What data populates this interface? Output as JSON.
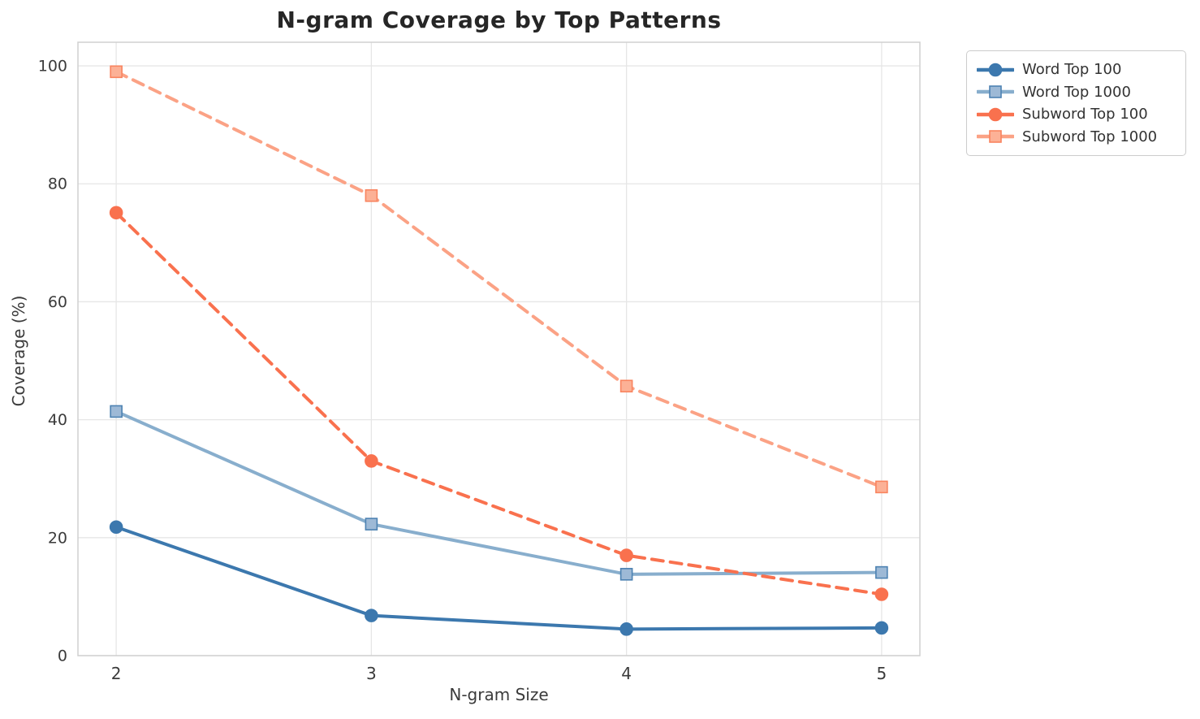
{
  "title": "N-gram Coverage by Top Patterns",
  "chart_data": {
    "type": "line",
    "title": "N-gram Coverage by Top Patterns",
    "xlabel": "N-gram Size",
    "ylabel": "Coverage (%)",
    "x": [
      2,
      3,
      4,
      5
    ],
    "xticks": [
      "2",
      "3",
      "4",
      "5"
    ],
    "yticks": [
      "0",
      "20",
      "40",
      "60",
      "80",
      "100"
    ],
    "ytick_values": [
      0,
      20,
      40,
      60,
      80,
      100
    ],
    "xlim": [
      1.85,
      5.15
    ],
    "ylim": [
      0,
      104
    ],
    "grid": true,
    "legend_position": "outside upper right",
    "series": [
      {
        "name": "Word Top 100",
        "values": [
          21.8,
          6.8,
          4.5,
          4.7
        ],
        "color": "#3c78ae",
        "marker_fill": "#3c78ae",
        "marker_edge": "#3c78ae",
        "line_style": "solid",
        "marker": "circle"
      },
      {
        "name": "Word Top 1000",
        "values": [
          41.4,
          22.3,
          13.8,
          14.1
        ],
        "color": "#88aecd",
        "marker_fill": "#9db9d6",
        "marker_edge": "#4d82b2",
        "line_style": "solid",
        "marker": "square"
      },
      {
        "name": "Subword Top 100",
        "values": [
          75.1,
          33.0,
          17.0,
          10.4
        ],
        "color": "#f9714e",
        "marker_fill": "#f9714e",
        "marker_edge": "#f9714e",
        "line_style": "dashed",
        "marker": "circle"
      },
      {
        "name": "Subword Top 1000",
        "values": [
          99.0,
          78.0,
          45.7,
          28.6
        ],
        "color": "#fba285",
        "marker_fill": "#fcb196",
        "marker_edge": "#f9845f",
        "line_style": "dashed",
        "marker": "square"
      }
    ]
  },
  "style": {
    "grid_color": "#e6e6e6",
    "spine_color": "#d0d0d0",
    "tick_label_color": "#3b3b3b",
    "tick_font_size": 19,
    "line_width": 4
  }
}
